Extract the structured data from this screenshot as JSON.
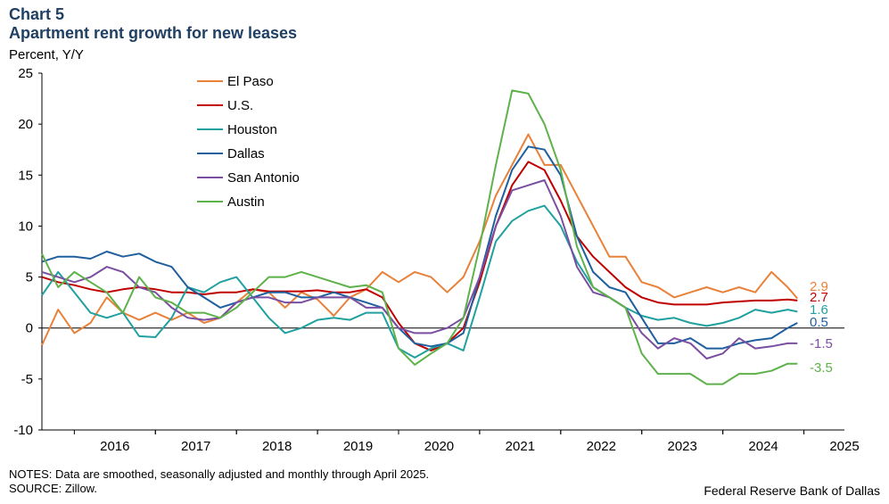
{
  "header": {
    "chart_label": "Chart 5",
    "title": "Apartment rent growth for new leases",
    "unit": "Percent, Y/Y"
  },
  "footer": {
    "notes": "NOTES: Data are smoothed, seasonally adjusted and monthly through April 2025.",
    "source": "SOURCE: Zillow.",
    "credit": "Federal Reserve Bank of Dallas"
  },
  "chart_data": {
    "type": "line",
    "title": "Apartment rent growth for new leases",
    "ylabel": "Percent, Y/Y",
    "xlabel": "",
    "ylim": [
      -10,
      25
    ],
    "xlim": [
      2015.6,
      2025.5
    ],
    "yticks": [
      25,
      20,
      15,
      10,
      5,
      0,
      -5,
      -10
    ],
    "xticks": [
      "2016",
      "2017",
      "2018",
      "2019",
      "2020",
      "2021",
      "2022",
      "2023",
      "2024",
      "2025"
    ],
    "legend_position": "top-left",
    "x": [
      2015.6,
      2015.8,
      2016.0,
      2016.2,
      2016.4,
      2016.6,
      2016.8,
      2017.0,
      2017.2,
      2017.4,
      2017.6,
      2017.8,
      2018.0,
      2018.2,
      2018.4,
      2018.6,
      2018.8,
      2019.0,
      2019.2,
      2019.4,
      2019.6,
      2019.8,
      2020.0,
      2020.2,
      2020.4,
      2020.6,
      2020.8,
      2021.0,
      2021.2,
      2021.4,
      2021.6,
      2021.8,
      2022.0,
      2022.2,
      2022.4,
      2022.6,
      2022.8,
      2023.0,
      2023.2,
      2023.4,
      2023.6,
      2023.8,
      2024.0,
      2024.2,
      2024.4,
      2024.6,
      2024.8,
      2024.92
    ],
    "series": [
      {
        "name": "El Paso",
        "color": "#e8823a",
        "end_label": "2.9",
        "values": [
          -1.7,
          1.8,
          -0.5,
          0.5,
          3.0,
          1.5,
          0.8,
          1.5,
          0.8,
          1.5,
          0.5,
          1.0,
          2.5,
          3.8,
          3.5,
          2.0,
          3.5,
          2.8,
          1.2,
          3.0,
          3.8,
          5.5,
          4.5,
          5.5,
          5.0,
          3.5,
          5.0,
          8.5,
          13.0,
          16.0,
          19.0,
          16.0,
          16.0,
          13.0,
          10.0,
          7.0,
          7.0,
          4.5,
          4.0,
          3.0,
          3.5,
          4.0,
          3.5,
          4.0,
          3.5,
          5.5,
          4.0,
          2.9
        ]
      },
      {
        "name": "U.S.",
        "color": "#c00000",
        "end_label": "2.7",
        "values": [
          5.0,
          4.5,
          4.2,
          3.8,
          3.5,
          3.8,
          4.0,
          3.8,
          3.5,
          3.5,
          3.3,
          3.5,
          3.5,
          3.8,
          3.6,
          3.6,
          3.6,
          3.7,
          3.5,
          3.5,
          3.8,
          3.0,
          0.5,
          -1.5,
          -2.2,
          -1.5,
          0.0,
          4.5,
          10.0,
          14.0,
          16.3,
          15.5,
          12.5,
          9.0,
          7.0,
          5.5,
          4.0,
          3.0,
          2.5,
          2.3,
          2.3,
          2.3,
          2.5,
          2.6,
          2.7,
          2.7,
          2.8,
          2.7
        ]
      },
      {
        "name": "Houston",
        "color": "#21a0a0",
        "end_label": "1.6",
        "values": [
          3.2,
          5.5,
          3.5,
          1.5,
          1.0,
          1.5,
          -0.8,
          -0.9,
          1.0,
          4.0,
          3.5,
          4.5,
          5.0,
          3.0,
          1.0,
          -0.5,
          0.0,
          0.8,
          1.0,
          0.8,
          1.5,
          1.5,
          -2.0,
          -2.9,
          -2.0,
          -1.5,
          -2.2,
          3.0,
          8.5,
          10.5,
          11.5,
          12.0,
          10.0,
          6.5,
          4.0,
          3.0,
          2.0,
          1.2,
          0.8,
          1.0,
          0.5,
          0.2,
          0.5,
          1.0,
          1.8,
          1.5,
          1.8,
          1.6
        ]
      },
      {
        "name": "Dallas",
        "color": "#1f5f9e",
        "end_label": "0.5",
        "values": [
          6.5,
          7.0,
          7.0,
          6.8,
          7.5,
          7.0,
          7.3,
          6.5,
          6.0,
          4.0,
          3.0,
          2.0,
          2.5,
          3.0,
          3.5,
          3.5,
          3.0,
          3.0,
          3.5,
          3.0,
          2.5,
          2.0,
          0.0,
          -1.5,
          -1.8,
          -1.5,
          -0.5,
          5.0,
          11.0,
          15.5,
          17.8,
          17.5,
          15.0,
          9.0,
          5.5,
          4.0,
          3.5,
          1.0,
          -1.5,
          -1.5,
          -1.0,
          -2.0,
          -2.0,
          -1.5,
          -1.2,
          -1.0,
          0.0,
          0.5
        ]
      },
      {
        "name": "San Antonio",
        "color": "#7a4ea0",
        "end_label": "-1.5",
        "values": [
          5.5,
          5.0,
          4.5,
          5.0,
          6.0,
          5.5,
          4.0,
          3.5,
          2.0,
          1.0,
          0.8,
          1.0,
          2.5,
          3.0,
          3.0,
          2.5,
          2.5,
          3.0,
          3.0,
          3.0,
          2.0,
          2.0,
          0.0,
          -0.5,
          -0.5,
          0.0,
          1.0,
          5.0,
          10.0,
          13.5,
          14.0,
          14.5,
          11.0,
          6.0,
          3.5,
          3.0,
          2.0,
          -0.5,
          -2.0,
          -1.0,
          -1.5,
          -3.0,
          -2.5,
          -1.0,
          -2.0,
          -1.8,
          -1.5,
          -1.5
        ]
      },
      {
        "name": "Austin",
        "color": "#5fb14b",
        "end_label": "-3.5",
        "values": [
          7.3,
          4.0,
          5.5,
          4.5,
          3.5,
          1.5,
          5.0,
          3.0,
          2.5,
          1.5,
          1.5,
          1.0,
          2.0,
          3.5,
          5.0,
          5.0,
          5.5,
          5.0,
          4.5,
          4.0,
          4.2,
          3.5,
          -2.0,
          -3.6,
          -2.5,
          -1.5,
          1.0,
          8.0,
          16.0,
          23.3,
          23.0,
          20.0,
          15.5,
          8.0,
          4.0,
          3.0,
          2.0,
          -2.5,
          -4.5,
          -4.5,
          -4.5,
          -5.5,
          -5.5,
          -4.5,
          -4.5,
          -4.2,
          -3.5,
          -3.5
        ]
      }
    ]
  }
}
